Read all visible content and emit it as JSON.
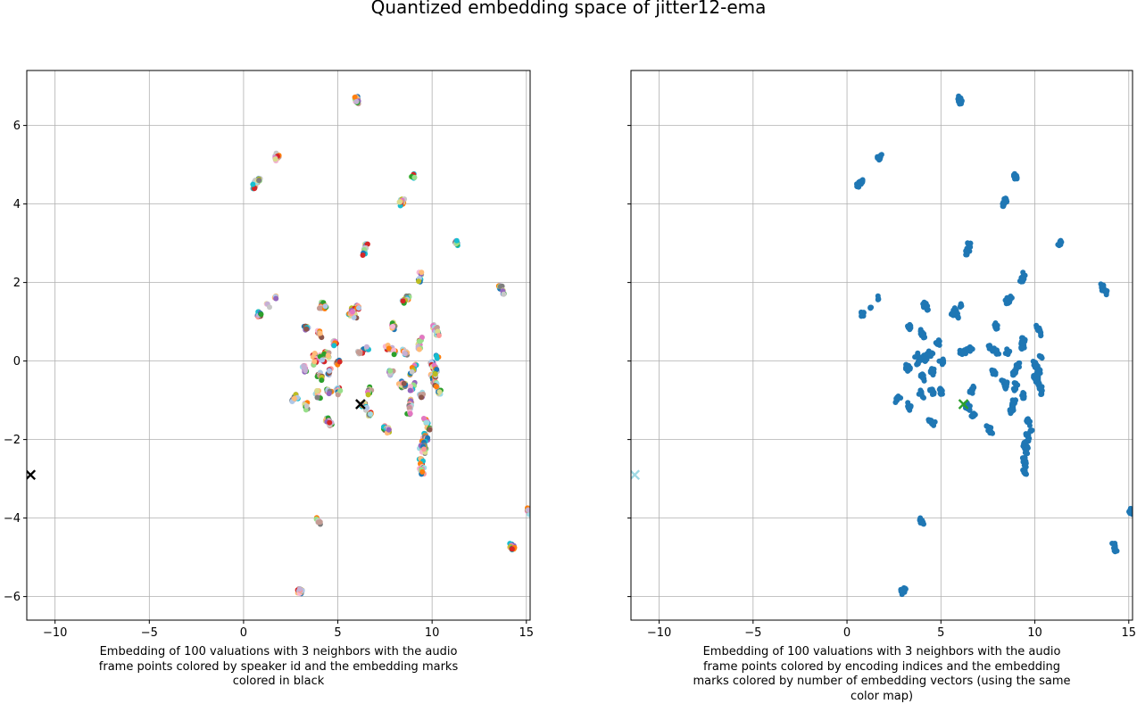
{
  "figure": {
    "title": "Quantized embedding space of jitter12-ema"
  },
  "colors": {
    "tab20": [
      "#1f77b4",
      "#aec7e8",
      "#ff7f0e",
      "#ffbb78",
      "#2ca02c",
      "#98df8a",
      "#d62728",
      "#ff9896",
      "#9467bd",
      "#c5b0d5",
      "#8c564b",
      "#c49c94",
      "#e377c2",
      "#f7b6d2",
      "#7f7f7f",
      "#c7c7c7",
      "#bcbd22",
      "#dbdb8d",
      "#17becf",
      "#9edae5"
    ],
    "index_color": "#1f77b4",
    "left_marks": "#000000",
    "right_mark_main": "#2ca02c",
    "right_mark_edge": "#9edae5"
  },
  "chart_data": [
    {
      "type": "scatter",
      "caption": "Embedding of 100 valuations with 3 neighbors with the audio frame points colored by speaker id and the embedding marks colored in black",
      "caption_lines": [
        "Embedding of 100 valuations with 3 neighbors with the audio",
        "frame points colored by speaker id and the embedding marks",
        "colored in black"
      ],
      "xlim": [
        -11.5,
        15.2
      ],
      "ylim": [
        -6.6,
        7.4
      ],
      "xticks": [
        -10,
        -5,
        0,
        5,
        10,
        15
      ],
      "yticks": [
        -6,
        -4,
        -2,
        0,
        2,
        4,
        6
      ],
      "xtick_labels": [
        "−10",
        "−5",
        "0",
        "5",
        "10",
        "15"
      ],
      "ytick_labels": [
        "−6",
        "−4",
        "−2",
        "0",
        "2",
        "4",
        "6"
      ],
      "grid": true,
      "point_color_mode": "speaker",
      "marks": [
        {
          "x": 6.2,
          "y": -1.1
        },
        {
          "x": -11.3,
          "y": -2.9
        }
      ],
      "mark_color_key": "left_marks"
    },
    {
      "type": "scatter",
      "caption": "Embedding of 100 valuations with 3 neighbors with the audio frame points colored by encoding indices and the embedding marks colored by number of embedding vectors (using the same color map)",
      "caption_lines": [
        "Embedding of 100 valuations with 3 neighbors with the audio",
        "frame points colored by encoding indices and the embedding",
        "marks colored by number of embedding vectors (using the same",
        "color map)"
      ],
      "xlim": [
        -11.5,
        15.2
      ],
      "ylim": [
        -6.6,
        7.4
      ],
      "xticks": [
        -10,
        -5,
        0,
        5,
        10,
        15
      ],
      "yticks": [
        -6,
        -4,
        -2,
        0,
        2,
        4,
        6
      ],
      "xtick_labels": [
        "−10",
        "−5",
        "0",
        "5",
        "10",
        "15"
      ],
      "grid": true,
      "point_color_mode": "index",
      "marks": [
        {
          "x": 6.2,
          "y": -1.1
        },
        {
          "x": -11.3,
          "y": -2.9
        }
      ],
      "mark_color_key": "right_mark_main"
    }
  ],
  "clusters": [
    [
      6.0,
      6.65
    ],
    [
      5.98,
      6.7
    ],
    [
      6.05,
      6.6
    ],
    [
      1.75,
      5.2
    ],
    [
      1.8,
      5.25
    ],
    [
      1.7,
      5.15
    ],
    [
      0.6,
      4.5
    ],
    [
      0.7,
      4.55
    ],
    [
      0.8,
      4.6
    ],
    [
      0.55,
      4.45
    ],
    [
      8.95,
      4.72
    ],
    [
      9.0,
      4.68
    ],
    [
      8.4,
      4.05
    ],
    [
      8.45,
      4.1
    ],
    [
      8.35,
      4.0
    ],
    [
      6.5,
      2.95
    ],
    [
      6.45,
      2.85
    ],
    [
      6.4,
      2.75
    ],
    [
      11.3,
      3.0
    ],
    [
      11.35,
      3.02
    ],
    [
      9.4,
      2.2
    ],
    [
      9.35,
      2.1
    ],
    [
      9.3,
      2.05
    ],
    [
      13.6,
      1.9
    ],
    [
      13.65,
      1.85
    ],
    [
      13.8,
      1.75
    ],
    [
      1.7,
      1.62
    ],
    [
      0.8,
      1.2
    ],
    [
      0.85,
      1.18
    ],
    [
      1.3,
      1.4
    ],
    [
      4.2,
      1.45
    ],
    [
      4.1,
      1.4
    ],
    [
      4.3,
      1.35
    ],
    [
      6.0,
      1.4
    ],
    [
      5.8,
      1.3
    ],
    [
      5.6,
      1.2
    ],
    [
      5.9,
      1.15
    ],
    [
      6.1,
      1.35
    ],
    [
      5.7,
      1.25
    ],
    [
      8.7,
      1.6
    ],
    [
      8.6,
      1.55
    ],
    [
      8.5,
      1.5
    ],
    [
      3.3,
      0.9
    ],
    [
      3.35,
      0.85
    ],
    [
      4.0,
      0.75
    ],
    [
      4.05,
      0.65
    ],
    [
      7.9,
      0.95
    ],
    [
      7.95,
      0.85
    ],
    [
      9.4,
      0.55
    ],
    [
      9.3,
      0.45
    ],
    [
      9.35,
      0.35
    ],
    [
      10.1,
      0.9
    ],
    [
      10.2,
      0.8
    ],
    [
      10.3,
      0.7
    ],
    [
      4.8,
      0.5
    ],
    [
      4.85,
      0.45
    ],
    [
      6.5,
      0.3
    ],
    [
      6.3,
      0.25
    ],
    [
      6.1,
      0.22
    ],
    [
      6.6,
      0.35
    ],
    [
      7.6,
      0.35
    ],
    [
      7.8,
      0.3
    ],
    [
      8.0,
      0.22
    ],
    [
      8.5,
      0.25
    ],
    [
      8.6,
      0.2
    ],
    [
      3.7,
      0.15
    ],
    [
      3.9,
      0.05
    ],
    [
      4.1,
      0.1
    ],
    [
      4.3,
      0.2
    ],
    [
      4.5,
      0.15
    ],
    [
      4.2,
      0.0
    ],
    [
      3.8,
      -0.05
    ],
    [
      5.0,
      -0.05
    ],
    [
      5.05,
      0.0
    ],
    [
      3.2,
      -0.15
    ],
    [
      3.3,
      -0.22
    ],
    [
      9.1,
      -0.1
    ],
    [
      9.0,
      -0.2
    ],
    [
      8.9,
      -0.3
    ],
    [
      10.0,
      -0.05
    ],
    [
      10.1,
      -0.15
    ],
    [
      10.2,
      -0.25
    ],
    [
      10.3,
      0.1
    ],
    [
      4.0,
      -0.35
    ],
    [
      4.1,
      -0.45
    ],
    [
      4.5,
      -0.3
    ],
    [
      4.55,
      -0.25
    ],
    [
      7.8,
      -0.25
    ],
    [
      7.85,
      -0.3
    ],
    [
      10.0,
      -0.4
    ],
    [
      10.1,
      -0.5
    ],
    [
      10.2,
      -0.6
    ],
    [
      10.3,
      -0.7
    ],
    [
      10.4,
      -0.8
    ],
    [
      10.15,
      -0.35
    ],
    [
      8.3,
      -0.55
    ],
    [
      8.4,
      -0.65
    ],
    [
      8.5,
      -0.6
    ],
    [
      9.0,
      -0.6
    ],
    [
      8.9,
      -0.7
    ],
    [
      2.7,
      -0.95
    ],
    [
      2.8,
      -0.9
    ],
    [
      2.65,
      -1.0
    ],
    [
      3.9,
      -0.8
    ],
    [
      4.0,
      -0.9
    ],
    [
      4.5,
      -0.75
    ],
    [
      4.6,
      -0.8
    ],
    [
      5.0,
      -0.7
    ],
    [
      5.05,
      -0.8
    ],
    [
      6.7,
      -0.7
    ],
    [
      6.6,
      -0.8
    ],
    [
      3.3,
      -1.1
    ],
    [
      3.35,
      -1.2
    ],
    [
      9.4,
      -0.85
    ],
    [
      9.45,
      -0.9
    ],
    [
      8.9,
      -1.0
    ],
    [
      8.85,
      -1.1
    ],
    [
      8.8,
      -1.2
    ],
    [
      8.75,
      -1.3
    ],
    [
      6.4,
      -1.1
    ],
    [
      6.3,
      -1.15
    ],
    [
      6.5,
      -1.2
    ],
    [
      6.7,
      -1.4
    ],
    [
      6.75,
      -1.35
    ],
    [
      4.4,
      -1.5
    ],
    [
      4.5,
      -1.55
    ],
    [
      4.6,
      -1.6
    ],
    [
      7.5,
      -1.7
    ],
    [
      7.6,
      -1.75
    ],
    [
      7.7,
      -1.8
    ],
    [
      9.6,
      -1.5
    ],
    [
      9.7,
      -1.6
    ],
    [
      9.8,
      -1.75
    ],
    [
      9.6,
      -1.9
    ],
    [
      9.7,
      -2.0
    ],
    [
      9.5,
      -2.1
    ],
    [
      9.4,
      -2.2
    ],
    [
      9.55,
      -2.3
    ],
    [
      9.6,
      -2.2
    ],
    [
      9.4,
      -2.5
    ],
    [
      9.45,
      -2.6
    ],
    [
      9.5,
      -2.7
    ],
    [
      9.4,
      -2.8
    ],
    [
      9.5,
      -2.85
    ],
    [
      3.95,
      -4.05
    ],
    [
      4.0,
      -4.1
    ],
    [
      14.2,
      -4.7
    ],
    [
      14.25,
      -4.75
    ],
    [
      14.3,
      -4.8
    ],
    [
      15.1,
      -3.8
    ],
    [
      15.15,
      -3.85
    ],
    [
      2.95,
      -5.85
    ],
    [
      3.0,
      -5.9
    ],
    [
      3.05,
      -5.82
    ]
  ]
}
